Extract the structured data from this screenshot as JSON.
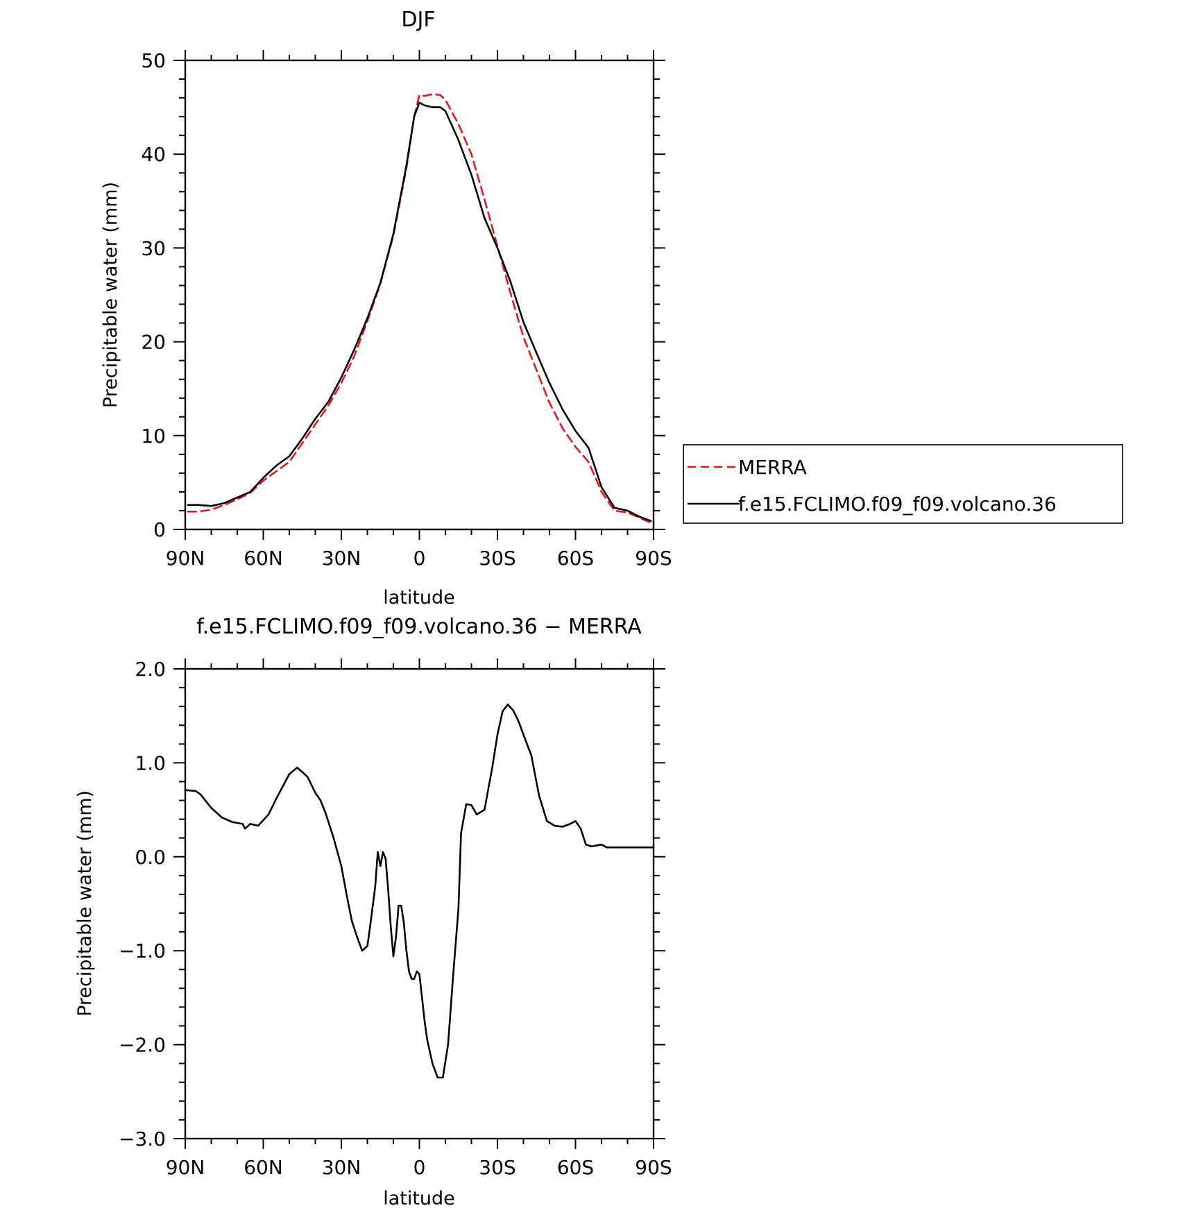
{
  "chart_data": [
    {
      "type": "line",
      "title": "DJF",
      "xlabel": "latitude",
      "ylabel": "Precipitable water (mm)",
      "xlim": [
        90,
        -90
      ],
      "ylim": [
        0,
        50
      ],
      "x_ticks": [
        90,
        60,
        30,
        0,
        -30,
        -60,
        -90
      ],
      "x_tick_labels": [
        "90N",
        "60N",
        "30N",
        "0",
        "30S",
        "60S",
        "90S"
      ],
      "y_ticks": [
        0,
        10,
        20,
        30,
        40,
        50
      ],
      "y_tick_labels": [
        "0",
        "10",
        "20",
        "30",
        "40",
        "50"
      ],
      "legend_position": "right",
      "series": [
        {
          "name": "MERRA",
          "color": "#e8161b",
          "dash": "dashed",
          "x": [
            89,
            85,
            80,
            75,
            70,
            65,
            60,
            55,
            50,
            45,
            40,
            35,
            30,
            25,
            20,
            15,
            10,
            5,
            2,
            0,
            -2,
            -5,
            -8,
            -10,
            -15,
            -20,
            -25,
            -30,
            -35,
            -40,
            -45,
            -50,
            -55,
            -60,
            -65,
            -70,
            -75,
            -80,
            -85,
            -89
          ],
          "values": [
            1.9,
            1.9,
            2.1,
            2.6,
            3.2,
            3.9,
            5.2,
            6.2,
            7.2,
            9.2,
            11.2,
            13.2,
            15.6,
            18.5,
            22.2,
            26.2,
            31.3,
            38.5,
            44.0,
            46.3,
            46.2,
            46.4,
            46.3,
            45.8,
            43.2,
            40.0,
            35.2,
            30.2,
            25.2,
            20.5,
            17.0,
            13.5,
            10.8,
            8.8,
            7.2,
            4.0,
            2.0,
            1.8,
            1.2,
            0.7
          ]
        },
        {
          "name": "f.e15.FCLIMO.f09_f09.volcano.36",
          "color": "#000000",
          "dash": "solid",
          "x": [
            89,
            85,
            80,
            75,
            70,
            65,
            60,
            55,
            50,
            45,
            40,
            35,
            30,
            25,
            20,
            15,
            10,
            5,
            2,
            0,
            -2,
            -5,
            -8,
            -10,
            -15,
            -20,
            -25,
            -30,
            -35,
            -40,
            -45,
            -50,
            -55,
            -60,
            -65,
            -70,
            -75,
            -80,
            -85,
            -89
          ],
          "values": [
            2.6,
            2.6,
            2.5,
            2.8,
            3.4,
            4.0,
            5.5,
            6.8,
            7.8,
            9.7,
            11.8,
            13.6,
            16.2,
            19.2,
            22.5,
            26.3,
            31.5,
            38.8,
            44.0,
            45.5,
            45.2,
            45.0,
            45.0,
            44.6,
            41.5,
            37.8,
            33.2,
            30.0,
            26.4,
            22.1,
            18.8,
            15.6,
            12.8,
            10.5,
            8.7,
            4.5,
            2.3,
            2.0,
            1.3,
            0.9
          ]
        }
      ]
    },
    {
      "type": "line",
      "title": "f.e15.FCLIMO.f09_f09.volcano.36 − MERRA",
      "xlabel": "latitude",
      "ylabel": "Precipitable water (mm)",
      "xlim": [
        90,
        -90
      ],
      "ylim": [
        -3.0,
        2.0
      ],
      "x_ticks": [
        90,
        60,
        30,
        0,
        -30,
        -60,
        -90
      ],
      "x_tick_labels": [
        "90N",
        "60N",
        "30N",
        "0",
        "30S",
        "60S",
        "90S"
      ],
      "y_ticks": [
        -3.0,
        -2.0,
        -1.0,
        0.0,
        1.0,
        2.0
      ],
      "y_tick_labels": [
        "−3.0",
        "−2.0",
        "−1.0",
        "0.0",
        "1.0",
        "2.0"
      ],
      "series": [
        {
          "name": "f.e15.FCLIMO.f09_f09.volcano.36 − MERRA",
          "color": "#000000",
          "dash": "solid",
          "x": [
            90,
            86,
            84,
            80,
            76,
            72,
            68,
            67,
            65,
            62,
            58,
            55,
            50,
            47,
            45,
            43,
            40,
            38,
            36,
            33,
            30,
            28,
            26,
            24,
            22,
            20,
            19,
            17,
            16,
            15,
            14,
            13,
            12,
            11,
            10,
            9,
            8,
            7,
            6,
            5,
            4,
            3,
            2,
            1,
            0,
            -1,
            -2,
            -3,
            -5,
            -7,
            -9,
            -11,
            -13,
            -15,
            -16,
            -18,
            -20,
            -22,
            -25,
            -28,
            -30,
            -32,
            -34,
            -36,
            -38,
            -40,
            -43,
            -46,
            -49,
            -52,
            -55,
            -58,
            -60,
            -62,
            -64,
            -66,
            -68,
            -70,
            -72,
            -74,
            -76,
            -78,
            -80,
            -82,
            -84,
            -86,
            -88,
            -90
          ],
          "values": [
            0.71,
            0.7,
            0.66,
            0.52,
            0.42,
            0.37,
            0.35,
            0.3,
            0.35,
            0.33,
            0.45,
            0.62,
            0.88,
            0.95,
            0.9,
            0.85,
            0.68,
            0.6,
            0.46,
            0.2,
            -0.1,
            -0.4,
            -0.68,
            -0.85,
            -1.0,
            -0.95,
            -0.75,
            -0.32,
            0.05,
            -0.1,
            0.05,
            -0.02,
            -0.35,
            -0.75,
            -1.06,
            -0.85,
            -0.52,
            -0.52,
            -0.7,
            -1.0,
            -1.22,
            -1.3,
            -1.3,
            -1.22,
            -1.25,
            -1.5,
            -1.75,
            -1.95,
            -2.2,
            -2.35,
            -2.35,
            -2.0,
            -1.25,
            -0.55,
            0.25,
            0.56,
            0.55,
            0.45,
            0.5,
            0.95,
            1.3,
            1.55,
            1.62,
            1.56,
            1.45,
            1.3,
            1.08,
            0.65,
            0.38,
            0.33,
            0.32,
            0.35,
            0.38,
            0.3,
            0.13,
            0.11,
            0.12,
            0.13,
            0.1,
            0.1,
            0.1,
            0.1,
            0.1,
            0.1,
            0.1,
            0.1,
            0.1,
            0.1
          ]
        }
      ]
    }
  ]
}
